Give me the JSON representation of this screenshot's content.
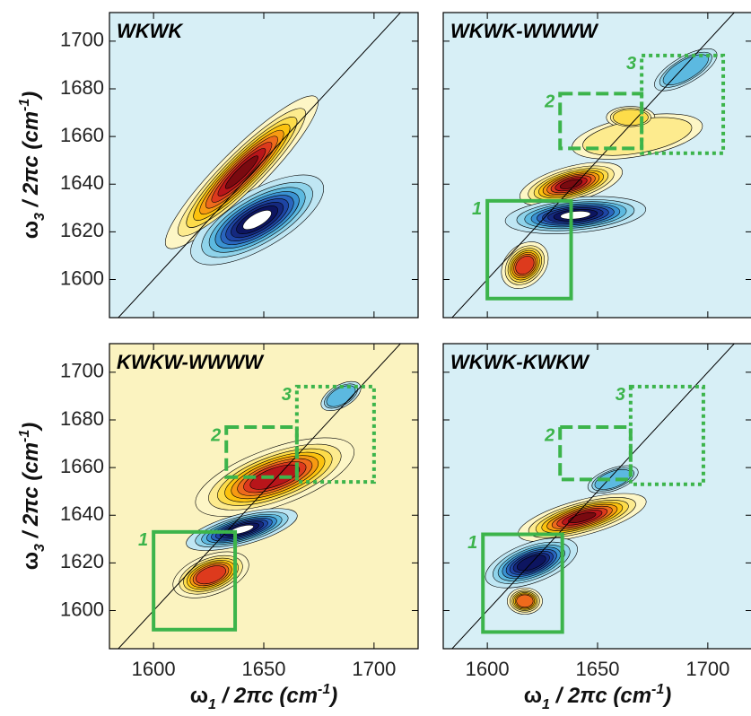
{
  "chart_data": [
    {
      "type": "contour",
      "title": "WKWK",
      "xlim": [
        1580,
        1720
      ],
      "ylim": [
        1584,
        1712
      ],
      "xticks": [
        1600,
        1650,
        1700
      ],
      "yticks": [
        1600,
        1620,
        1640,
        1660,
        1680,
        1700
      ],
      "xtick_labels": false,
      "ytick_labels": true,
      "ylabel": [
        "ω",
        "3",
        " / 2πc (cm",
        "-1",
        ")"
      ],
      "background": "#d7eff6",
      "diagonal": true,
      "peaks": [
        {
          "x": 1640,
          "y": 1645,
          "value": 1,
          "rx": 48,
          "ry": 10,
          "angle": 45
        },
        {
          "x": 1647,
          "y": 1625,
          "value": -1,
          "rx": 34,
          "ry": 13,
          "angle": 30
        }
      ],
      "regions": []
    },
    {
      "type": "contour",
      "title": "WKWK-WWWW",
      "xlim": [
        1580,
        1720
      ],
      "ylim": [
        1584,
        1712
      ],
      "xticks": [
        1600,
        1650,
        1700
      ],
      "yticks": [
        1600,
        1620,
        1640,
        1660,
        1680,
        1700
      ],
      "xtick_labels": false,
      "ytick_labels": false,
      "background": "#d7eff6",
      "diagonal": true,
      "peaks": [
        {
          "x": 1668,
          "y": 1660,
          "value": 0.25,
          "rx": 30,
          "ry": 9,
          "angle": 10
        },
        {
          "x": 1665,
          "y": 1668,
          "value": 0.3,
          "rx": 11,
          "ry": 5,
          "angle": 0
        },
        {
          "x": 1690,
          "y": 1688,
          "value": -0.35,
          "rx": 16,
          "ry": 6,
          "angle": 30
        },
        {
          "x": 1638,
          "y": 1640,
          "value": 1,
          "rx": 24,
          "ry": 8,
          "angle": 15
        },
        {
          "x": 1640,
          "y": 1627,
          "value": -1,
          "rx": 32,
          "ry": 8,
          "angle": 5
        },
        {
          "x": 1617,
          "y": 1606,
          "value": 0.7,
          "rx": 12,
          "ry": 9,
          "angle": 45
        }
      ],
      "regions": [
        {
          "label": "1",
          "xlim": [
            1600,
            1638
          ],
          "ylim": [
            1592,
            1633
          ],
          "style": "solid"
        },
        {
          "label": "2",
          "xlim": [
            1633,
            1670
          ],
          "ylim": [
            1655,
            1678
          ],
          "style": "dashed"
        },
        {
          "label": "3",
          "xlim": [
            1670,
            1707
          ],
          "ylim": [
            1653,
            1694
          ],
          "style": "dotted"
        }
      ]
    },
    {
      "type": "contour",
      "title": "KWKW-WWWW",
      "xlim": [
        1580,
        1720
      ],
      "ylim": [
        1584,
        1712
      ],
      "xticks": [
        1600,
        1650,
        1700
      ],
      "yticks": [
        1600,
        1620,
        1640,
        1660,
        1680,
        1700
      ],
      "xtick_labels": true,
      "ytick_labels": true,
      "xlabel": [
        "ω",
        "1",
        " / 2πc (cm",
        "-1",
        ")"
      ],
      "ylabel": [
        "ω",
        "3",
        " / 2πc (cm",
        "-1",
        ")"
      ],
      "background": "#fbf3c0",
      "diagonal": true,
      "peaks": [
        {
          "x": 1655,
          "y": 1656,
          "value": 0.8,
          "rx": 38,
          "ry": 13,
          "angle": 20
        },
        {
          "x": 1640,
          "y": 1634,
          "value": -1,
          "rx": 26,
          "ry": 7,
          "angle": 15
        },
        {
          "x": 1626,
          "y": 1615,
          "value": 0.75,
          "rx": 18,
          "ry": 9,
          "angle": 20
        },
        {
          "x": 1685,
          "y": 1690,
          "value": -0.3,
          "rx": 10,
          "ry": 5,
          "angle": 30
        }
      ],
      "regions": [
        {
          "label": "1",
          "xlim": [
            1600,
            1637
          ],
          "ylim": [
            1592,
            1633
          ],
          "style": "solid"
        },
        {
          "label": "2",
          "xlim": [
            1633,
            1665
          ],
          "ylim": [
            1656,
            1677
          ],
          "style": "dashed"
        },
        {
          "label": "3",
          "xlim": [
            1665,
            1700
          ],
          "ylim": [
            1654,
            1694
          ],
          "style": "dotted"
        }
      ]
    },
    {
      "type": "contour",
      "title": "WKWK-KWKW",
      "xlim": [
        1580,
        1720
      ],
      "ylim": [
        1584,
        1712
      ],
      "xticks": [
        1600,
        1650,
        1700
      ],
      "yticks": [
        1600,
        1620,
        1640,
        1660,
        1680,
        1700
      ],
      "xtick_labels": true,
      "ytick_labels": false,
      "xlabel": [
        "ω",
        "1",
        " / 2πc (cm",
        "-1",
        ")"
      ],
      "background": "#d7eff6",
      "diagonal": true,
      "peaks": [
        {
          "x": 1643,
          "y": 1639,
          "value": 1,
          "rx": 30,
          "ry": 8,
          "angle": 15
        },
        {
          "x": 1620,
          "y": 1620,
          "value": -0.85,
          "rx": 22,
          "ry": 9,
          "angle": 20
        },
        {
          "x": 1617,
          "y": 1604,
          "value": 0.6,
          "rx": 8,
          "ry": 6,
          "angle": 0
        },
        {
          "x": 1657,
          "y": 1655,
          "value": -0.35,
          "rx": 12,
          "ry": 5,
          "angle": 20
        }
      ],
      "regions": [
        {
          "label": "1",
          "xlim": [
            1598,
            1634
          ],
          "ylim": [
            1591,
            1632
          ],
          "style": "solid"
        },
        {
          "label": "2",
          "xlim": [
            1633,
            1665
          ],
          "ylim": [
            1655,
            1677
          ],
          "style": "dashed"
        },
        {
          "label": "3",
          "xlim": [
            1665,
            1698
          ],
          "ylim": [
            1653,
            1694
          ],
          "style": "dotted"
        }
      ]
    }
  ],
  "colormap": {
    "levels": [
      0.1,
      0.2,
      0.3,
      0.4,
      0.5,
      0.6,
      0.7,
      0.8,
      0.9
    ],
    "positive": [
      "#fdf6c6",
      "#fdeb8e",
      "#fddc4a",
      "#fcc20e",
      "#f79a12",
      "#ee6a1c",
      "#dd3a1d",
      "#b8151a",
      "#7a0a10"
    ],
    "negative": [
      "#bfe6f3",
      "#8fd3ea",
      "#5cb9e0",
      "#3a92d2",
      "#2a66be",
      "#1e45a4",
      "#15297f",
      "#0d1560",
      "#ffffff"
    ]
  },
  "region_color": "#3cb44b"
}
